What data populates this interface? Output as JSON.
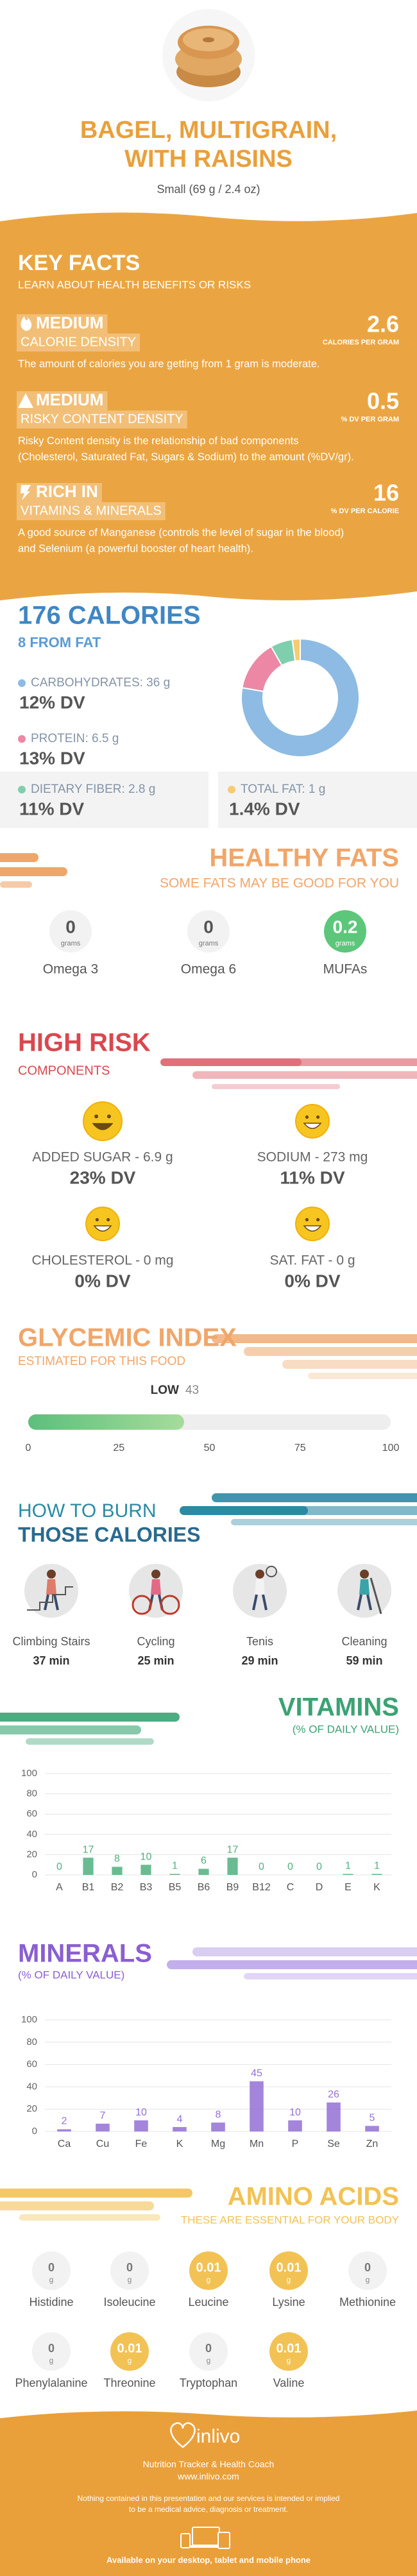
{
  "header": {
    "title": [
      "BAGEL, MULTIGRAIN,",
      "WITH RAISINS"
    ],
    "serving": "Small (69 g / 2.4 oz)"
  },
  "key_facts": {
    "title": "KEY FACTS",
    "subtitle": "LEARN ABOUT HEALTH BENEFITS OR RISKS",
    "facts": [
      {
        "level": "MEDIUM",
        "name": "CALORIE DENSITY",
        "value": 2.6,
        "unit": "CALORIES PER GRAM",
        "description": [
          "The amount of calories you are getting from 1 gram is moderate."
        ]
      },
      {
        "level": "MEDIUM",
        "name": "RISKY CONTENT DENSITY",
        "value": 0.5,
        "unit": "% DV PER GRAM",
        "description": [
          "Risky Content density is the relationship of bad components",
          "(Cholesterol, Saturated Fat, Sugars & Sodium) to the amount (%DV/gr)."
        ]
      },
      {
        "level": "RICH IN",
        "name": "VITAMINS & MINERALS",
        "value": 16,
        "unit": "% DV PER CALORIE",
        "description": [
          "A good source of Manganese (controls the level of sugar in the blood)",
          "and Selenium (a powerful booster of heart health)."
        ]
      }
    ]
  },
  "calories": {
    "title": "176 CALORIES",
    "subtitle": "8 FROM FAT",
    "nutrients": [
      {
        "label": "CARBOHYDRATES: 36 g",
        "grams": 36,
        "dv": "12% DV",
        "color": "#8dbbe3"
      },
      {
        "label": "PROTEIN: 6.5 g",
        "grams": 6.5,
        "dv": "13% DV",
        "color": "#ec88a6"
      },
      {
        "label": "DIETARY FIBER: 2.8 g",
        "grams": 2.8,
        "dv": "11% DV",
        "color": "#7fcfae"
      },
      {
        "label": "TOTAL FAT: 1 g",
        "grams": 1,
        "dv": "1.4% DV",
        "color": "#f6cb72"
      }
    ]
  },
  "healthy_fats": {
    "title": "HEALTHY FATS",
    "subtitle": "SOME FATS MAY BE GOOD FOR YOU",
    "unit": "grams",
    "items": [
      {
        "name": "Omega 3",
        "value": 0
      },
      {
        "name": "Omega 6",
        "value": 0
      },
      {
        "name": "MUFAs",
        "value": 0.2
      }
    ]
  },
  "high_risk": {
    "title": "HIGH RISK",
    "subtitle": "COMPONENTS",
    "items": [
      {
        "label": "ADDED SUGAR - 6.9 g",
        "dv": "23% DV"
      },
      {
        "label": "SODIUM - 273 mg",
        "dv": "11% DV"
      },
      {
        "label": "CHOLESTEROL - 0 mg",
        "dv": "0% DV"
      },
      {
        "label": "SAT. FAT - 0 g",
        "dv": "0% DV"
      }
    ]
  },
  "glycemic_index": {
    "title": "GLYCEMIC INDEX",
    "subtitle": "ESTIMATED FOR THIS FOOD",
    "level": "LOW",
    "value": 43,
    "xlim": [
      0,
      100
    ],
    "xticks": [
      0,
      25,
      50,
      75,
      100
    ]
  },
  "burn": {
    "title": [
      "HOW TO BURN",
      "THOSE CALORIES"
    ],
    "activities": [
      {
        "name": "Climbing Stairs",
        "time": "37 min"
      },
      {
        "name": "Cycling",
        "time": "25 min"
      },
      {
        "name": "Tenis",
        "time": "29 min"
      },
      {
        "name": "Cleaning",
        "time": "59 min"
      }
    ]
  },
  "vitamins": {
    "type": "bar",
    "title": "VITAMINS",
    "subtitle": "(% OF DAILY VALUE)",
    "categories": [
      "A",
      "B1",
      "B2",
      "B3",
      "B5",
      "B6",
      "B9",
      "B12",
      "C",
      "D",
      "E",
      "K"
    ],
    "values": [
      0,
      17,
      8,
      10,
      1,
      6,
      17,
      0,
      0,
      0,
      1,
      1
    ],
    "color": "#4fb07e",
    "ylim": [
      0,
      100
    ],
    "yticks": [
      0,
      20,
      40,
      60,
      80,
      100
    ],
    "grid": true
  },
  "minerals": {
    "type": "bar",
    "title": "MINERALS",
    "subtitle": "(% OF DAILY VALUE)",
    "categories": [
      "Ca",
      "Cu",
      "Fe",
      "K",
      "Mg",
      "Mn",
      "P",
      "Se",
      "Zn"
    ],
    "values": [
      2,
      7,
      10,
      4,
      8,
      45,
      10,
      26,
      5
    ],
    "color": "#9470d6",
    "ylim": [
      0,
      100
    ],
    "yticks": [
      0,
      20,
      40,
      60,
      80,
      100
    ],
    "grid": true
  },
  "amino_acids": {
    "title": "AMINO ACIDS",
    "subtitle": "THESE ARE ESSENTIAL FOR YOUR BODY",
    "unit": "g",
    "items": [
      {
        "name": "Histidine",
        "value": 0
      },
      {
        "name": "Isoleucine",
        "value": 0
      },
      {
        "name": "Leucine",
        "value": 0.01
      },
      {
        "name": "Lysine",
        "value": 0.01
      },
      {
        "name": "Methionine",
        "value": 0
      },
      {
        "name": "Phenylalanine",
        "value": 0
      },
      {
        "name": "Threonine",
        "value": 0.01
      },
      {
        "name": "Tryptophan",
        "value": 0
      },
      {
        "name": "Valine",
        "value": 0.01
      }
    ]
  },
  "footer": {
    "brand": "inlivo",
    "tagline": "Nutrition Tracker & Health Coach",
    "url": "www.inlivo.com",
    "disclaimer": [
      "Nothing contained in this presentation and our services is intended or implied",
      "to be a medical advice, diagnosis or treatment."
    ],
    "availability": "Available on your desktop, tablet and mobile phone"
  }
}
